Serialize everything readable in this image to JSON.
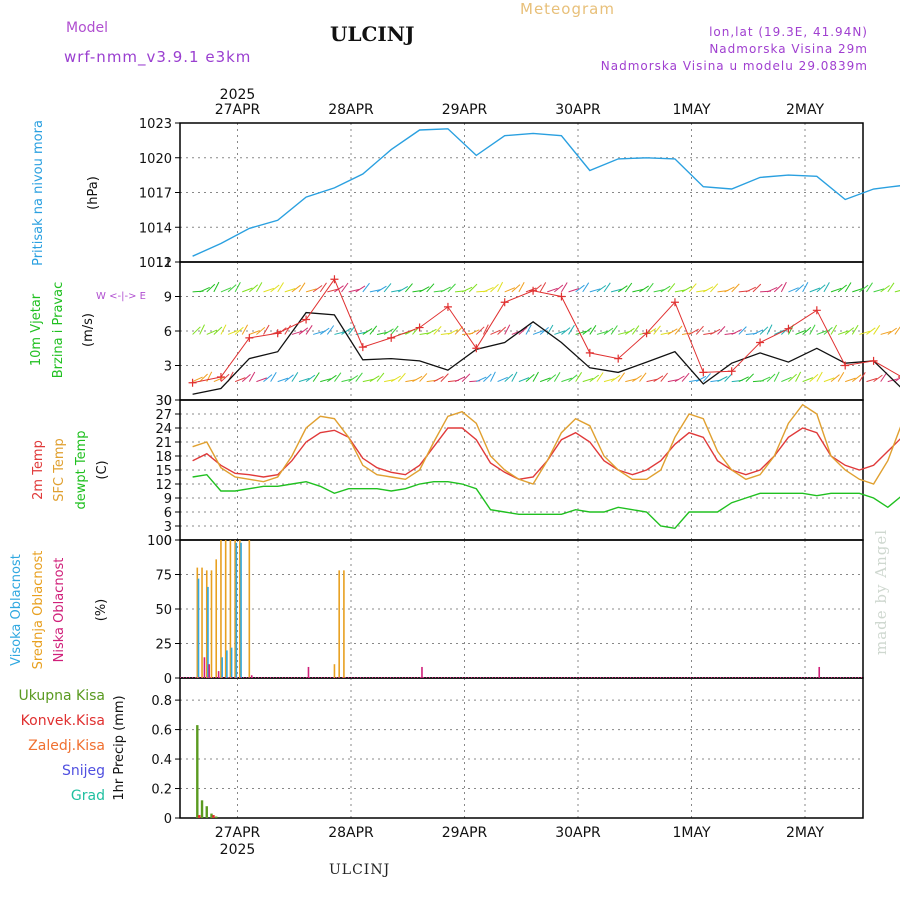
{
  "header": {
    "model_label": "Model",
    "model_name": "wrf-nmm_v3.9.1 e3km",
    "title": "ULCINJ",
    "subtitle": "Meteogram",
    "lonlat": "lon,lat (19.3E, 41.94N)",
    "altitude": "Nadmorska Visina 29m",
    "model_altitude": "Nadmorska Visina u modelu 29.0839m"
  },
  "footer": {
    "station": "ULCINJ"
  },
  "watermark": "made by Angel",
  "colors": {
    "pressure": "#2aa0e0",
    "wind": "#111111",
    "gust": "#e03030",
    "temp2m": "#e03a3a",
    "sfc": "#e0a030",
    "dew": "#20c020",
    "high_cloud": "#30a8e0",
    "mid_cloud": "#e8a020",
    "low_cloud": "#d0207a",
    "total_precip": "#5a9a20",
    "conv_precip": "#e03030",
    "frozen": "#f07030",
    "snow": "#5050e0",
    "graupel": "#20c0a0"
  },
  "chart_data": [
    {
      "type": "line",
      "name": "pressure",
      "ylabel_parts": [
        "Pritisak na nivou mora",
        "(hPa)"
      ],
      "ylim": [
        1011,
        1023
      ],
      "yticks": [
        1011,
        1014,
        1017,
        1020,
        1023
      ],
      "x_hours": [
        0,
        6,
        12,
        18,
        24,
        30,
        36,
        42,
        48,
        54,
        60,
        66,
        72,
        78,
        84,
        90,
        96,
        102,
        108,
        114,
        120,
        126,
        132,
        138,
        144,
        150,
        156
      ],
      "series": [
        {
          "name": "MSLP",
          "values": [
            1011.5,
            1012.6,
            1013.9,
            1014.6,
            1016.6,
            1017.4,
            1018.6,
            1020.7,
            1022.4,
            1022.5,
            1020.2,
            1021.9,
            1022.1,
            1021.9,
            1018.9,
            1019.9,
            1020.0,
            1019.9,
            1017.5,
            1017.3,
            1018.3,
            1018.5,
            1018.4,
            1016.4,
            1017.3,
            1017.6,
            1017.7
          ]
        }
      ]
    },
    {
      "type": "line",
      "name": "wind",
      "ylabel_parts": [
        "10m Vjetar",
        "Brzina i Pravac",
        "(m/s)"
      ],
      "compass": "W <-|-> E",
      "ylim": [
        0,
        12
      ],
      "yticks": [
        0,
        3,
        6,
        9,
        12
      ],
      "x_hours": [
        0,
        6,
        12,
        18,
        24,
        30,
        36,
        42,
        48,
        54,
        60,
        66,
        72,
        78,
        84,
        90,
        96,
        102,
        108,
        114,
        120,
        126,
        132,
        138,
        144,
        150,
        156
      ],
      "series": [
        {
          "name": "wind speed",
          "values": [
            0.5,
            1.0,
            3.6,
            4.2,
            7.6,
            7.4,
            3.5,
            3.6,
            3.4,
            2.6,
            4.4,
            5.0,
            6.8,
            5.0,
            2.8,
            2.4,
            3.3,
            4.2,
            1.4,
            3.2,
            4.1,
            3.3,
            4.5,
            3.2,
            3.4,
            1.0,
            3.5
          ]
        },
        {
          "name": "gust",
          "values": [
            1.5,
            2.0,
            5.4,
            5.8,
            7.0,
            10.5,
            4.6,
            5.4,
            6.3,
            8.1,
            4.5,
            8.5,
            9.5,
            9.0,
            4.1,
            3.6,
            5.8,
            8.5,
            2.4,
            2.5,
            5.0,
            6.2,
            7.8,
            3.0,
            3.4,
            2.0,
            5.8
          ]
        }
      ]
    },
    {
      "type": "line",
      "name": "temperature",
      "ylabel_parts": [
        "2m Temp",
        "SFC Temp",
        "dewpt Temp",
        "(C)"
      ],
      "ylim": [
        0,
        30
      ],
      "yticks": [
        0,
        3,
        6,
        9,
        12,
        15,
        18,
        21,
        24,
        27,
        30
      ],
      "x_hours": [
        0,
        3,
        6,
        9,
        12,
        15,
        18,
        21,
        24,
        27,
        30,
        33,
        36,
        39,
        42,
        45,
        48,
        51,
        54,
        57,
        60,
        63,
        66,
        69,
        72,
        75,
        78,
        81,
        84,
        87,
        90,
        93,
        96,
        99,
        102,
        105,
        108,
        111,
        114,
        117,
        120,
        123,
        126,
        129,
        132,
        135,
        138,
        141,
        144,
        147,
        150,
        153,
        156
      ],
      "series": [
        {
          "name": "2m Temp",
          "values": [
            17,
            18.5,
            16,
            14.3,
            14,
            13.5,
            14,
            17,
            21,
            23,
            23.5,
            22,
            17.5,
            15.5,
            14.5,
            14,
            16,
            20,
            24,
            24,
            21.5,
            16.5,
            14.5,
            13,
            13.5,
            17,
            21.5,
            23,
            21,
            17,
            15,
            14,
            15,
            17,
            20.5,
            23,
            22,
            17,
            15,
            14,
            15,
            18,
            22,
            24,
            23,
            18,
            16,
            15,
            16,
            19,
            22,
            24,
            24
          ]
        },
        {
          "name": "SFC Temp",
          "values": [
            20,
            21,
            15.5,
            13.5,
            13,
            12.5,
            13.5,
            18,
            24,
            26.5,
            26,
            22,
            16,
            14,
            13.5,
            13,
            15,
            21,
            26.5,
            27.5,
            25,
            18,
            15,
            13,
            12,
            17,
            23,
            26,
            24.5,
            18,
            15,
            13,
            13,
            15,
            22,
            27,
            26,
            19,
            15,
            13,
            14,
            18,
            25,
            29,
            27,
            18,
            15,
            13,
            12,
            17,
            25,
            29,
            29
          ]
        },
        {
          "name": "dewpt Temp",
          "values": [
            13.5,
            14,
            10.5,
            10.5,
            11,
            11.5,
            11.5,
            12,
            12.5,
            11.5,
            10,
            11,
            11,
            11,
            10.5,
            11,
            12,
            12.5,
            12.5,
            12,
            11,
            6.5,
            6,
            5.5,
            5.5,
            5.5,
            5.5,
            6.5,
            6,
            6,
            7,
            6.5,
            6,
            3,
            2.5,
            6,
            6,
            6,
            8,
            9,
            10,
            10,
            10,
            10,
            9.5,
            10,
            10,
            10,
            9,
            7,
            9.5,
            11.5,
            10.5
          ]
        }
      ]
    },
    {
      "type": "bar",
      "name": "cloud",
      "ylabel_parts": [
        "Visoka Oblacnost",
        "Srednja Oblacnost",
        "Niska Oblacnost",
        "(%)"
      ],
      "ylim": [
        0,
        100
      ],
      "yticks": [
        0,
        25,
        50,
        75,
        100
      ],
      "series": [
        {
          "name": "Srednja Oblacnost",
          "points": [
            [
              1,
              80
            ],
            [
              2,
              80
            ],
            [
              3,
              78
            ],
            [
              4,
              78
            ],
            [
              5,
              86
            ],
            [
              6,
              100
            ],
            [
              7,
              100
            ],
            [
              8,
              100
            ],
            [
              9,
              100
            ],
            [
              10,
              100
            ],
            [
              12,
              100
            ],
            [
              30,
              10
            ],
            [
              31,
              78
            ],
            [
              32,
              78
            ]
          ]
        },
        {
          "name": "Visoka Oblacnost",
          "points": [
            [
              1,
              72
            ],
            [
              3,
              66
            ],
            [
              6,
              15
            ],
            [
              7,
              20
            ],
            [
              8,
              22
            ],
            [
              9,
              98
            ],
            [
              10,
              98
            ]
          ]
        },
        {
          "name": "Niska Oblacnost",
          "points": [
            [
              2,
              15
            ],
            [
              3,
              10
            ],
            [
              5,
              5
            ],
            [
              12,
              2
            ],
            [
              24,
              8
            ],
            [
              48,
              8
            ],
            [
              132,
              8
            ]
          ]
        }
      ]
    },
    {
      "type": "bar",
      "name": "precip",
      "ylabel_parts": [
        "Ukupna Kisa",
        "Konvek.Kisa",
        "Zaledj.Kisa",
        "Snijeg",
        "Grad",
        "1hr Precip (mm)"
      ],
      "ylim": [
        0,
        0.95
      ],
      "yticks": [
        0,
        0.2,
        0.4,
        0.6,
        0.8
      ],
      "series": [
        {
          "name": "Ukupna Kisa",
          "points": [
            [
              1,
              0.63
            ],
            [
              2,
              0.12
            ],
            [
              3,
              0.08
            ],
            [
              4,
              0.03
            ],
            [
              5,
              0.01
            ]
          ]
        },
        {
          "name": "Konvek.Kisa",
          "points": [
            [
              1,
              0.02
            ],
            [
              4,
              0.02
            ]
          ]
        }
      ]
    }
  ],
  "x_axis": {
    "start_hour_offset": -9.5,
    "day_labels": [
      "27APR",
      "28APR",
      "29APR",
      "30APR",
      "1MAY",
      "2MAY"
    ],
    "year_label": "2025"
  }
}
